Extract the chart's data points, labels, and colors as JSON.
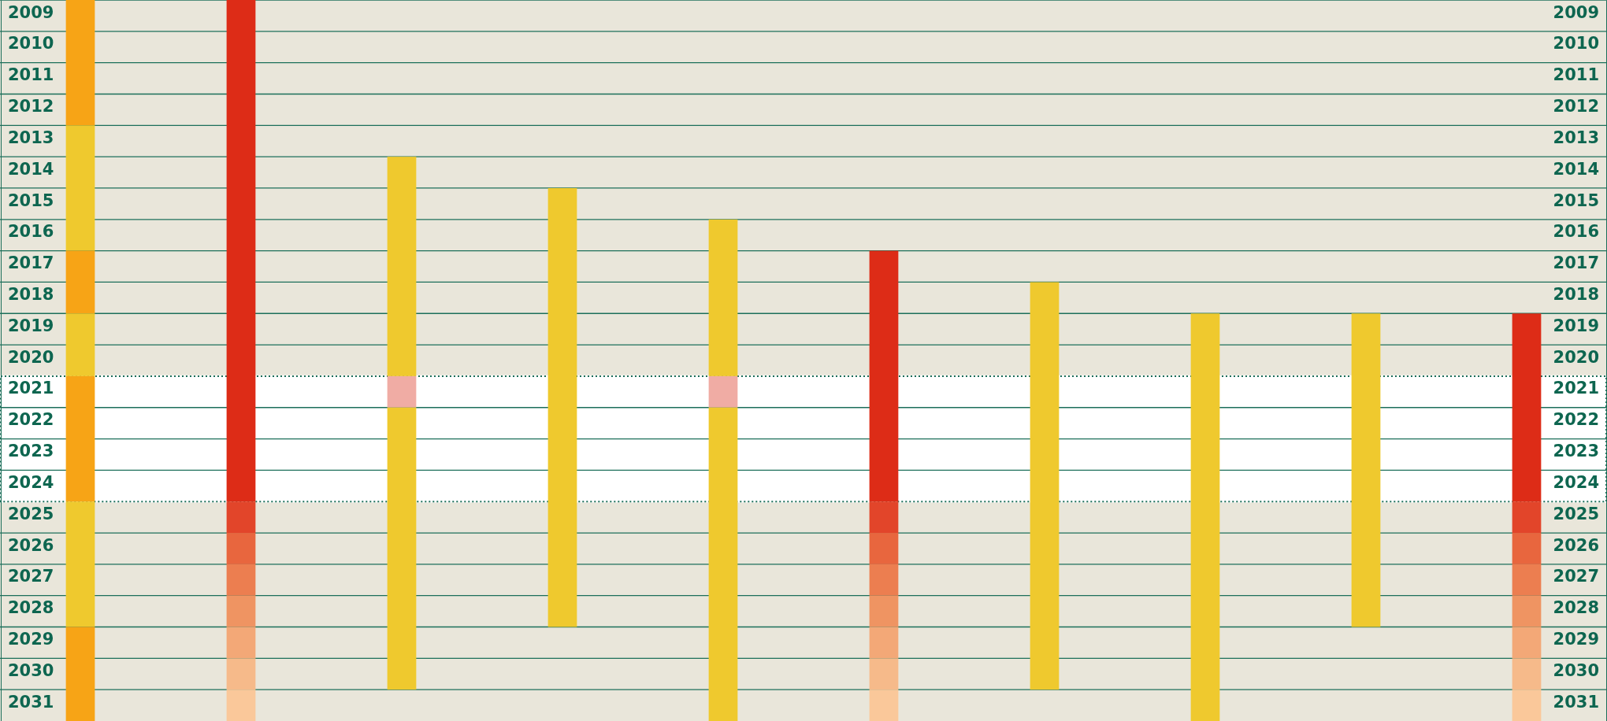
{
  "chart_data": {
    "type": "bar",
    "grid": "y",
    "categories": [
      null,
      null,
      null,
      null,
      null,
      null,
      null,
      null,
      null,
      null
    ],
    "series": [
      {
        "base": [
          2009,
          2009,
          2014,
          2015,
          2016,
          2017,
          2018,
          2019,
          2019,
          2019
        ],
        "values": [
          4,
          16,
          7,
          14,
          5,
          8,
          13,
          13,
          10,
          6
        ],
        "colors": [
          "#f7a416",
          "#dd2c17",
          "#efc92e",
          "#efc92e",
          "#efc92e",
          "#dd2c17",
          "#efc92e",
          "#efc92e",
          "#efc92e",
          "#dd2c17"
        ]
      },
      {
        "base": [
          2013,
          2025,
          2021,
          null,
          2021,
          2025,
          null,
          null,
          null,
          2025
        ],
        "values": [
          4,
          1,
          1,
          null,
          1,
          1,
          null,
          null,
          null,
          1
        ],
        "colors": [
          "#efc92e",
          "#e2452a",
          "#f0aca4",
          null,
          "#f0aca4",
          "#e2452a",
          null,
          null,
          null,
          "#e2452a"
        ]
      },
      {
        "base": [
          2017,
          2026,
          2022,
          null,
          2022,
          2026,
          null,
          null,
          null,
          2026
        ],
        "values": [
          2,
          1,
          9,
          null,
          10,
          1,
          null,
          null,
          null,
          1
        ],
        "colors": [
          "#f7a416",
          "#e8663e",
          "#efc92e",
          null,
          "#efc92e",
          "#e8663e",
          null,
          null,
          null,
          "#e8663e"
        ]
      },
      {
        "base": [
          2019,
          2027,
          null,
          null,
          null,
          2027,
          null,
          null,
          null,
          2027
        ],
        "values": [
          2,
          1,
          null,
          null,
          null,
          1,
          null,
          null,
          null,
          1
        ],
        "colors": [
          "#efc92e",
          "#ec7e50",
          null,
          null,
          null,
          "#ec7e50",
          null,
          null,
          null,
          "#ec7e50"
        ]
      },
      {
        "base": [
          2021,
          2028,
          null,
          null,
          null,
          2028,
          null,
          null,
          null,
          2028
        ],
        "values": [
          4,
          1,
          null,
          null,
          null,
          1,
          null,
          null,
          null,
          1
        ],
        "colors": [
          "#f7a416",
          "#ef9462",
          null,
          null,
          null,
          "#ef9462",
          null,
          null,
          null,
          "#ef9462"
        ]
      },
      {
        "base": [
          2025,
          2029,
          null,
          null,
          null,
          2029,
          null,
          null,
          null,
          2029
        ],
        "values": [
          4,
          1,
          null,
          null,
          null,
          1,
          null,
          null,
          null,
          1
        ],
        "colors": [
          "#efc92e",
          "#f3a877",
          null,
          null,
          null,
          "#f3a877",
          null,
          null,
          null,
          "#f3a877"
        ]
      },
      {
        "base": [
          2029,
          2030,
          null,
          null,
          null,
          2030,
          null,
          null,
          null,
          2030
        ],
        "values": [
          3,
          1,
          null,
          null,
          null,
          1,
          null,
          null,
          null,
          1
        ],
        "colors": [
          "#f7a416",
          "#f6ba8a",
          null,
          null,
          null,
          "#f6ba8a",
          null,
          null,
          null,
          "#f6ba8a"
        ]
      },
      {
        "base": [
          null,
          2031,
          null,
          null,
          null,
          2031,
          null,
          null,
          null,
          2031
        ],
        "values": [
          null,
          1,
          null,
          null,
          null,
          1,
          null,
          null,
          null,
          1
        ],
        "colors": [
          null,
          "#fac89a",
          null,
          null,
          null,
          "#fac89a",
          null,
          null,
          null,
          "#fac89a"
        ]
      }
    ],
    "ylim": [
      2032,
      2009
    ],
    "yticks": [
      2009,
      2010,
      2011,
      2012,
      2013,
      2014,
      2015,
      2016,
      2017,
      2018,
      2019,
      2020,
      2021,
      2022,
      2023,
      2024,
      2025,
      2026,
      2027,
      2028,
      2029,
      2030,
      2031
    ],
    "y2lim": [
      2032,
      2009
    ],
    "y2ticks": [
      2009,
      2010,
      2011,
      2012,
      2013,
      2014,
      2015,
      2016,
      2017,
      2018,
      2019,
      2020,
      2021,
      2022,
      2023,
      2024,
      2025,
      2026,
      2027,
      2028,
      2029,
      2030,
      2031
    ],
    "bands": [
      {
        "axis": "y",
        "from": 2021,
        "to": 2025,
        "color": "#ffffff"
      }
    ]
  }
}
